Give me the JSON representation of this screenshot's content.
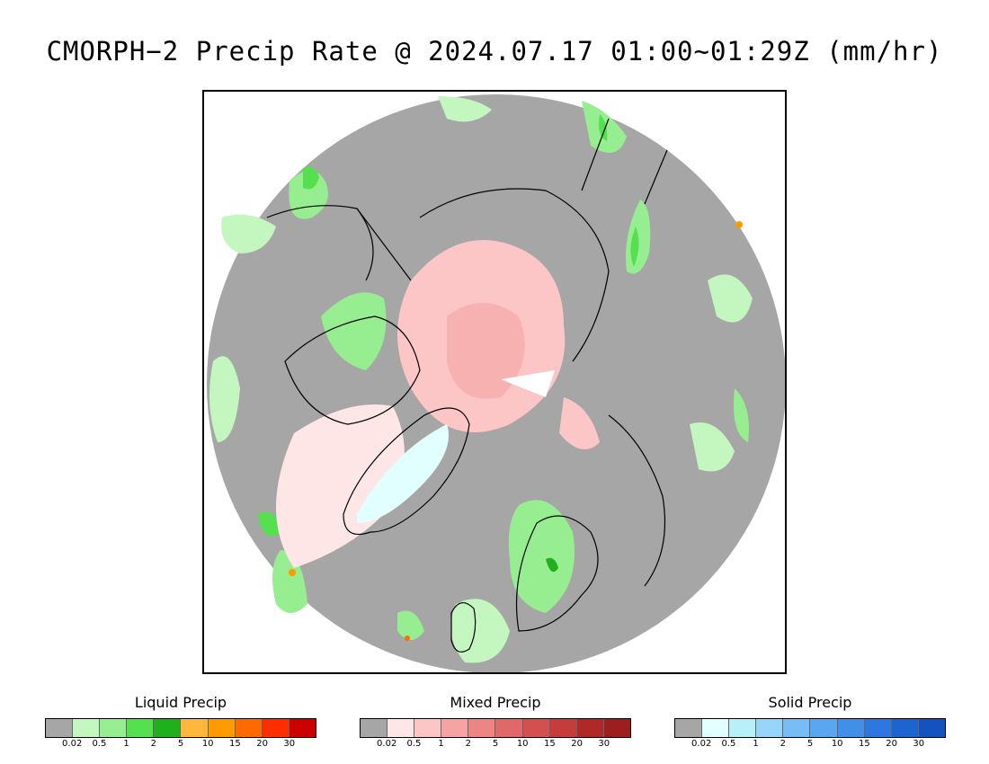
{
  "title": "CMORPH−2 Precip Rate @ 2024.07.17 01:00~01:29Z (mm/hr)",
  "map": {
    "projection": "north-polar-stereographic",
    "ocean_color": "#a6a6a6",
    "coastline_color": "#000000"
  },
  "legend_ticks": [
    "0.02",
    "0.5",
    "1",
    "2",
    "5",
    "10",
    "15",
    "20",
    "30"
  ],
  "legends": [
    {
      "id": "liquid",
      "title": "Liquid Precip",
      "colors": [
        "#a6a6a6",
        "#c4f7c0",
        "#97ee90",
        "#55e050",
        "#1fb01c",
        "#ffb83c",
        "#ff9a00",
        "#ff6a00",
        "#ff2e00",
        "#cc0000"
      ]
    },
    {
      "id": "mixed",
      "title": "Mixed Precip",
      "colors": [
        "#a6a6a6",
        "#ffe6e6",
        "#fcc6c6",
        "#f5a3a3",
        "#ee8585",
        "#e06868",
        "#d45050",
        "#c63c3c",
        "#b02828",
        "#9c1e1e"
      ]
    },
    {
      "id": "solid",
      "title": "Solid Precip",
      "colors": [
        "#a6a6a6",
        "#e2ffff",
        "#b8f0fa",
        "#96d4fa",
        "#78bcf5",
        "#5aa6f0",
        "#4090ea",
        "#2c78e0",
        "#1e64d0",
        "#1452c0"
      ]
    }
  ]
}
